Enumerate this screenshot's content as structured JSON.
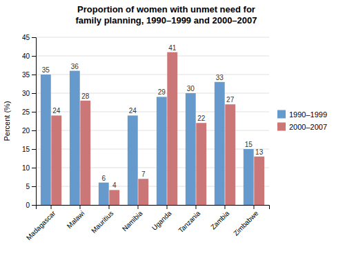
{
  "chart_data": {
    "type": "bar",
    "title": "Proportion of women with unmet need for\nfamily planning, 1990–1999 and 2000–2007",
    "categories": [
      "Madagascar",
      "Malawi",
      "Mauritius",
      "Namibia",
      "Uganda",
      "Tanzania",
      "Zambia",
      "Zimbabwe"
    ],
    "series": [
      {
        "name": "1990–1999",
        "color": "#6699cc",
        "values": [
          35,
          36,
          6,
          24,
          29,
          30,
          33,
          15
        ]
      },
      {
        "name": "2000–2007",
        "color": "#cc7777",
        "values": [
          24,
          28,
          4,
          7,
          41,
          22,
          27,
          13
        ]
      }
    ],
    "ylabel": "Percent (%)",
    "ylim": [
      0,
      45
    ],
    "yticks": [
      0,
      5,
      10,
      15,
      20,
      25,
      30,
      35,
      40,
      45
    ],
    "grid": true,
    "legend": "center right",
    "data_labels": true
  }
}
